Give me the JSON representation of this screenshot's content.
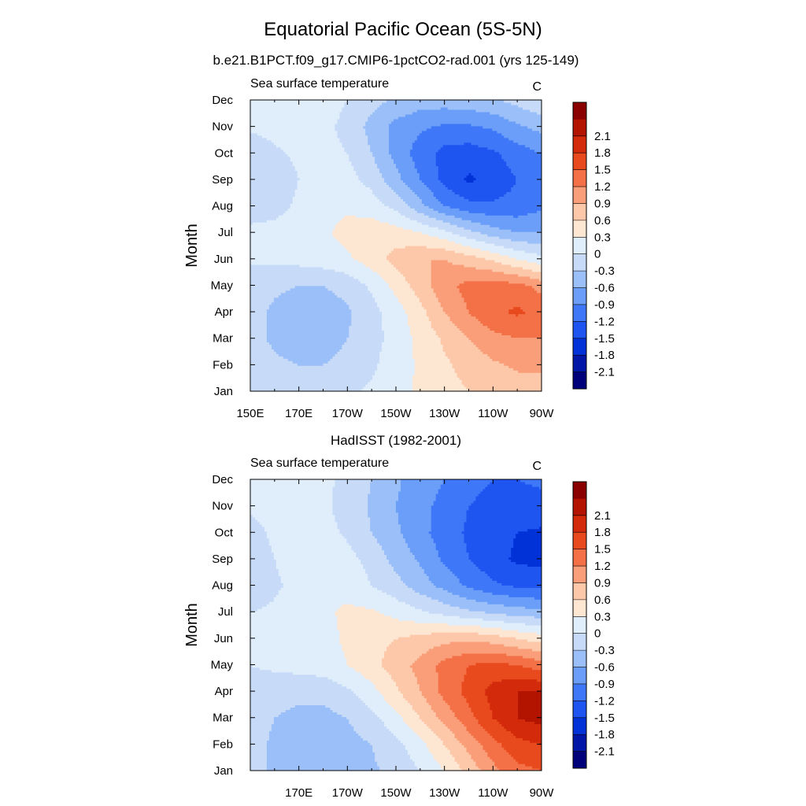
{
  "figure": {
    "title": "Equatorial Pacific Ocean (5S-5N)"
  },
  "colorbar": {
    "colors": [
      "#00007a",
      "#0016a6",
      "#0032d8",
      "#1e54f0",
      "#3e78f8",
      "#6a9ef8",
      "#9bbff8",
      "#c7dbf8",
      "#e0eefc",
      "#fde6d2",
      "#fcc8a9",
      "#f99e78",
      "#f47046",
      "#e84a1e",
      "#d22a0a",
      "#b21400",
      "#8a0000"
    ],
    "labels": [
      "-2.1",
      "-1.8",
      "-1.5",
      "-1.2",
      "-0.9",
      "-0.6",
      "-0.3",
      "0",
      "0.3",
      "0.6",
      "0.9",
      "1.2",
      "1.5",
      "1.8",
      "2.1"
    ]
  },
  "chart_data": [
    {
      "type": "heatmap",
      "title": "b.e21.B1PCT.f09_g17.CMIP6-1pctCO2-rad.001 (yrs 125-149)",
      "left_label": "Sea surface temperature",
      "units": "C",
      "ylabel": "Month",
      "xlabel": "",
      "x_tick_labels": [
        "150E",
        "170E",
        "170W",
        "150W",
        "130W",
        "110W",
        "90W"
      ],
      "y_tick_labels": [
        "Jan",
        "Feb",
        "Mar",
        "Apr",
        "May",
        "Jun",
        "Jul",
        "Aug",
        "Sep",
        "Oct",
        "Nov",
        "Dec"
      ],
      "xlim": [
        150,
        270
      ],
      "levels": [
        -2.1,
        -1.8,
        -1.5,
        -1.2,
        -0.9,
        -0.6,
        -0.3,
        0,
        0.3,
        0.6,
        0.9,
        1.2,
        1.5,
        1.8,
        2.1
      ],
      "x": [
        150,
        160,
        170,
        180,
        190,
        200,
        210,
        220,
        230,
        240,
        250,
        260,
        270
      ],
      "months": [
        "Jan",
        "Feb",
        "Mar",
        "Apr",
        "May",
        "Jun",
        "Jul",
        "Aug",
        "Sep",
        "Oct",
        "Nov",
        "Dec"
      ],
      "values": [
        [
          -0.1,
          -0.15,
          -0.2,
          -0.15,
          -0.05,
          0.05,
          0.2,
          0.35,
          0.5,
          0.6,
          0.7,
          0.75,
          0.75
        ],
        [
          -0.15,
          -0.25,
          -0.3,
          -0.3,
          -0.2,
          -0.05,
          0.15,
          0.35,
          0.55,
          0.7,
          0.85,
          0.95,
          0.95
        ],
        [
          -0.2,
          -0.35,
          -0.45,
          -0.45,
          -0.3,
          -0.1,
          0.1,
          0.4,
          0.65,
          0.9,
          1.1,
          1.2,
          1.2
        ],
        [
          -0.2,
          -0.35,
          -0.45,
          -0.45,
          -0.35,
          -0.1,
          0.15,
          0.5,
          0.9,
          1.2,
          1.45,
          1.55,
          1.4
        ],
        [
          -0.15,
          -0.25,
          -0.3,
          -0.3,
          -0.2,
          0.05,
          0.4,
          0.75,
          1.1,
          1.3,
          1.35,
          1.3,
          1.1
        ],
        [
          0.05,
          0.05,
          0.1,
          0.15,
          0.25,
          0.45,
          0.7,
          0.9,
          0.9,
          0.75,
          0.55,
          0.3,
          0.1
        ],
        [
          0.1,
          0.1,
          0.15,
          0.25,
          0.4,
          0.5,
          0.45,
          0.3,
          0.1,
          -0.2,
          -0.45,
          -0.6,
          -0.6
        ],
        [
          -0.2,
          -0.1,
          0.05,
          0.2,
          0.25,
          0.15,
          -0.1,
          -0.5,
          -0.9,
          -1.1,
          -1.15,
          -1.1,
          -0.95
        ],
        [
          -0.25,
          -0.15,
          0.0,
          0.1,
          0.1,
          -0.1,
          -0.5,
          -0.9,
          -1.3,
          -1.55,
          -1.4,
          -1.2,
          -1.0
        ],
        [
          -0.2,
          -0.05,
          0.05,
          0.1,
          0.0,
          -0.3,
          -0.7,
          -1.05,
          -1.3,
          -1.35,
          -1.25,
          -1.05,
          -0.9
        ],
        [
          0.05,
          0.1,
          0.15,
          0.1,
          -0.1,
          -0.4,
          -0.7,
          -0.85,
          -0.95,
          -0.95,
          -0.85,
          -0.65,
          -0.5
        ],
        [
          0.3,
          0.25,
          0.2,
          0.15,
          0.0,
          -0.2,
          -0.35,
          -0.45,
          -0.45,
          -0.4,
          -0.35,
          -0.2,
          -0.05
        ]
      ]
    },
    {
      "type": "heatmap",
      "title": "HadISST (1982-2001)",
      "left_label": "Sea surface temperature",
      "units": "C",
      "ylabel": "Month",
      "xlabel": "",
      "x_tick_labels": [
        "",
        "170E",
        "170W",
        "150W",
        "130W",
        "110W",
        "90W"
      ],
      "y_tick_labels": [
        "Jan",
        "Feb",
        "Mar",
        "Apr",
        "May",
        "Jun",
        "Jul",
        "Aug",
        "Sep",
        "Oct",
        "Nov",
        "Dec"
      ],
      "xlim": [
        150,
        270
      ],
      "levels": [
        -2.1,
        -1.8,
        -1.5,
        -1.2,
        -0.9,
        -0.6,
        -0.3,
        0,
        0.3,
        0.6,
        0.9,
        1.2,
        1.5,
        1.8,
        2.1
      ],
      "x": [
        150,
        160,
        170,
        180,
        190,
        200,
        210,
        220,
        230,
        240,
        250,
        260,
        270
      ],
      "months": [
        "Jan",
        "Feb",
        "Mar",
        "Apr",
        "May",
        "Jun",
        "Jul",
        "Aug",
        "Sep",
        "Oct",
        "Nov",
        "Dec"
      ],
      "values": [
        [
          -0.2,
          -0.35,
          -0.4,
          -0.4,
          -0.4,
          -0.35,
          -0.2,
          0.0,
          0.3,
          0.7,
          1.1,
          1.4,
          1.5
        ],
        [
          -0.2,
          -0.35,
          -0.45,
          -0.45,
          -0.4,
          -0.3,
          -0.1,
          0.2,
          0.6,
          1.0,
          1.4,
          1.7,
          1.8
        ],
        [
          -0.15,
          -0.3,
          -0.4,
          -0.4,
          -0.3,
          -0.1,
          0.2,
          0.6,
          1.0,
          1.4,
          1.8,
          2.1,
          2.2
        ],
        [
          -0.1,
          -0.15,
          -0.2,
          -0.2,
          -0.05,
          0.2,
          0.55,
          0.9,
          1.3,
          1.6,
          1.9,
          2.1,
          2.1
        ],
        [
          0.0,
          0.05,
          0.1,
          0.15,
          0.3,
          0.5,
          0.75,
          1.0,
          1.3,
          1.5,
          1.6,
          1.5,
          1.35
        ],
        [
          0.1,
          0.1,
          0.15,
          0.2,
          0.35,
          0.5,
          0.6,
          0.7,
          0.8,
          0.85,
          0.75,
          0.6,
          0.45
        ],
        [
          0.0,
          0.05,
          0.15,
          0.25,
          0.35,
          0.35,
          0.2,
          0.05,
          -0.1,
          -0.25,
          -0.35,
          -0.45,
          -0.5
        ],
        [
          -0.2,
          -0.05,
          0.1,
          0.25,
          0.2,
          0.0,
          -0.2,
          -0.45,
          -0.7,
          -0.95,
          -1.15,
          -1.25,
          -1.3
        ],
        [
          -0.15,
          0.0,
          0.15,
          0.25,
          0.1,
          -0.1,
          -0.4,
          -0.65,
          -0.95,
          -1.2,
          -1.4,
          -1.55,
          -1.6
        ],
        [
          -0.1,
          0.05,
          0.1,
          0.1,
          -0.05,
          -0.3,
          -0.55,
          -0.8,
          -1.05,
          -1.25,
          -1.4,
          -1.5,
          -1.55
        ],
        [
          0.05,
          0.1,
          0.1,
          0.05,
          -0.1,
          -0.35,
          -0.6,
          -0.8,
          -1.0,
          -1.2,
          -1.3,
          -1.3,
          -1.3
        ],
        [
          0.15,
          0.15,
          0.1,
          0.05,
          -0.05,
          -0.3,
          -0.55,
          -0.75,
          -0.9,
          -1.1,
          -1.2,
          -1.2,
          -1.15
        ]
      ]
    }
  ]
}
